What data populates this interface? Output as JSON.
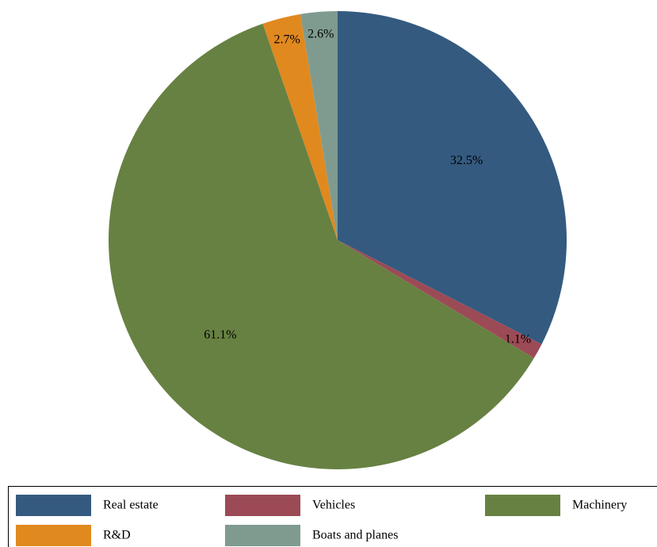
{
  "chart_data": {
    "type": "pie",
    "categories": [
      "Real estate",
      "Vehicles",
      "Machinery",
      "R&D",
      "Boats and planes"
    ],
    "values": [
      32.5,
      1.1,
      61.1,
      2.7,
      2.6
    ],
    "value_labels": [
      "32.5%",
      "1.1%",
      "61.1%",
      "2.7%",
      "2.6%"
    ],
    "colors": [
      "#345a7f",
      "#9c4a55",
      "#678142",
      "#e0891f",
      "#7f9b8f"
    ]
  }
}
